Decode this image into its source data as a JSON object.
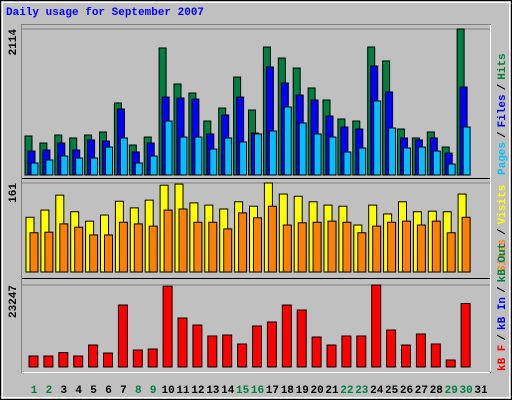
{
  "title": "Daily usage for September 2007",
  "chart_data": [
    {
      "type": "bar",
      "ylim": [
        0,
        2114
      ],
      "yticks": [
        2114
      ],
      "legend_separator": "/",
      "series": [
        {
          "name": "Hits",
          "color": "#008040",
          "values": [
            565,
            463,
            579,
            536,
            579,
            623,
            1043,
            434,
            550,
            1839,
            1318,
            1187,
            782,
            970,
            1419,
            941,
            1853,
            1694,
            1549,
            1260,
            1086,
            811,
            782,
            1853,
            1651,
            666,
            536,
            623,
            405,
            2114,
            null
          ]
        },
        {
          "name": "Files",
          "color": "#0000ff",
          "values": [
            347,
            362,
            463,
            362,
            507,
            492,
            956,
            333,
            463,
            1129,
            1115,
            1100,
            594,
            869,
            1129,
            608,
            1564,
            1332,
            1158,
            1086,
            854,
            695,
            666,
            1578,
            1202,
            536,
            507,
            536,
            318,
            1274,
            null
          ]
        },
        {
          "name": "Pages",
          "color": "#00c0ff",
          "values": [
            174,
            217,
            275,
            246,
            246,
            405,
            536,
            174,
            275,
            782,
            550,
            550,
            376,
            536,
            478,
            594,
            637,
            985,
            753,
            594,
            550,
            333,
            391,
            1072,
            680,
            391,
            405,
            347,
            159,
            695,
            null
          ]
        }
      ]
    },
    {
      "type": "bar",
      "ylim": [
        0,
        161
      ],
      "yticks": [
        161
      ],
      "legend_separator": "/",
      "series": [
        {
          "name": "Visits",
          "color": "#ffff00",
          "values": [
            99,
            112,
            139,
            109,
            92,
            103,
            128,
            116,
            130,
            157,
            159,
            125,
            121,
            114,
            127,
            119,
            161,
            141,
            137,
            127,
            121,
            119,
            85,
            121,
            105,
            127,
            109,
            110,
            109,
            141,
            null
          ]
        },
        {
          "name": "Sites",
          "color": "#ff8000",
          "values": [
            71,
            72,
            87,
            81,
            67,
            67,
            90,
            87,
            83,
            112,
            114,
            90,
            90,
            78,
            107,
            98,
            119,
            85,
            89,
            90,
            92,
            90,
            71,
            83,
            90,
            92,
            85,
            92,
            71,
            99,
            null
          ]
        }
      ]
    },
    {
      "type": "bar",
      "ylim": [
        0,
        23247
      ],
      "yticks": [
        23247
      ],
      "legend_separator": "/",
      "categories": [
        "1",
        "2",
        "3",
        "4",
        "5",
        "6",
        "7",
        "8",
        "9",
        "10",
        "11",
        "12",
        "13",
        "14",
        "15",
        "16",
        "17",
        "18",
        "19",
        "20",
        "21",
        "22",
        "23",
        "24",
        "25",
        "26",
        "27",
        "28",
        "29",
        "30",
        "31"
      ],
      "x_label_colors": [
        "#008040",
        "#008040",
        "#000000",
        "#000000",
        "#000000",
        "#000000",
        "#000000",
        "#008040",
        "#008040",
        "#000000",
        "#000000",
        "#000000",
        "#000000",
        "#000000",
        "#008040",
        "#008040",
        "#000000",
        "#000000",
        "#000000",
        "#000000",
        "#000000",
        "#008040",
        "#008040",
        "#000000",
        "#000000",
        "#000000",
        "#000000",
        "#000000",
        "#008040",
        "#008040",
        "#000000"
      ],
      "series": [
        {
          "name": "kB F",
          "color": "#ff0000",
          "values": [
            3119,
            3119,
            4071,
            3119,
            6237,
            3970,
            17575,
            4819,
            5103,
            22900,
            13890,
            11906,
            8788,
            9072,
            6520,
            11623,
            12757,
            17575,
            16158,
            8505,
            6237,
            8788,
            8788,
            23247,
            10490,
            6237,
            9355,
            6520,
            1984,
            18000,
            null
          ]
        }
      ],
      "extra_legend": [
        {
          "name": "kB In",
          "color": "#0000ff"
        },
        {
          "name": "kB Out",
          "color": "#008040"
        }
      ]
    }
  ]
}
